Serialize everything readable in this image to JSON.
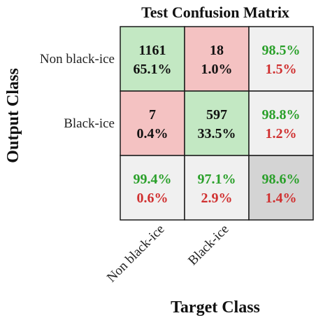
{
  "chart_data": {
    "type": "heatmap",
    "title": "Test Confusion Matrix",
    "xlabel": "Target Class",
    "ylabel": "Output Class",
    "classes": [
      "Non black-ice",
      "Black-ice"
    ],
    "matrix": [
      {
        "count": "1161",
        "percent": "65.1%"
      },
      {
        "count": "18",
        "percent": "1.0%"
      },
      {
        "count": "7",
        "percent": "0.4%"
      },
      {
        "count": "597",
        "percent": "33.5%"
      }
    ],
    "row_summary": [
      {
        "correct": "98.5%",
        "error": "1.5%"
      },
      {
        "correct": "98.8%",
        "error": "1.2%"
      }
    ],
    "column_summary": [
      {
        "correct": "99.4%",
        "error": "0.6%"
      },
      {
        "correct": "97.1%",
        "error": "2.9%"
      }
    ],
    "overall": {
      "correct": "98.6%",
      "error": "1.4%"
    }
  },
  "colors": {
    "correct_cell": "#c3e8c3",
    "error_cell": "#f4c2c2",
    "summary_cell": "#f0f0f0",
    "overall_cell": "#d4d4d4",
    "correct_text": "#2aa02a",
    "error_text": "#d03030",
    "count_text": "#111111",
    "border": "#1a1a1a"
  }
}
